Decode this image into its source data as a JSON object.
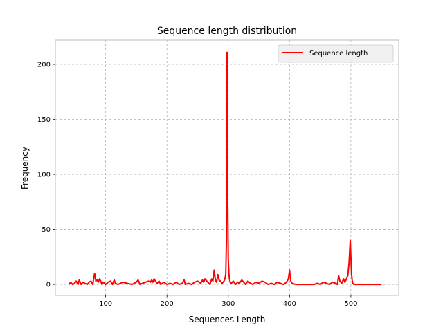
{
  "chart_data": {
    "type": "line",
    "title": "Sequence length distribution",
    "xlabel": "Sequences Length",
    "ylabel": "Frequency",
    "xlim": [
      18,
      578
    ],
    "ylim": [
      -10,
      222
    ],
    "xticks": [
      100,
      200,
      300,
      400,
      500
    ],
    "yticks": [
      0,
      50,
      100,
      150,
      200
    ],
    "grid": true,
    "legend_position": "top-right",
    "colors": {
      "series": "#ff0000",
      "grid": "#b0b0b0",
      "frame": "#bcbcbc"
    },
    "series": [
      {
        "name": "Sequence length",
        "x": [
          40,
          43,
          46,
          49,
          52,
          55,
          57,
          60,
          63,
          66,
          70,
          73,
          76,
          79,
          82,
          84,
          86,
          88,
          90,
          92,
          94,
          96,
          100,
          104,
          108,
          111,
          114,
          116,
          120,
          128,
          135,
          143,
          150,
          153,
          156,
          160,
          165,
          170,
          173,
          175,
          177,
          179,
          181,
          184,
          187,
          190,
          195,
          200,
          205,
          210,
          215,
          220,
          225,
          228,
          230,
          235,
          240,
          245,
          250,
          255,
          258,
          260,
          262,
          265,
          270,
          273,
          275,
          277,
          279,
          281,
          283,
          285,
          287,
          290,
          293,
          295,
          296,
          297,
          298,
          299,
          300,
          301,
          302,
          303,
          305,
          308,
          312,
          315,
          318,
          322,
          325,
          328,
          332,
          336,
          340,
          345,
          350,
          355,
          360,
          365,
          370,
          375,
          380,
          385,
          390,
          395,
          398,
          400,
          402,
          404,
          410,
          420,
          430,
          440,
          445,
          450,
          455,
          460,
          465,
          470,
          475,
          478,
          480,
          482,
          485,
          488,
          490,
          492,
          495,
          497,
          499,
          500,
          501,
          502,
          503,
          505,
          508,
          512,
          520,
          530,
          540,
          550
        ],
        "values": [
          0,
          2,
          0,
          1,
          3,
          0,
          4,
          0,
          2,
          1,
          0,
          2,
          3,
          0,
          10,
          3,
          4,
          2,
          5,
          3,
          0,
          2,
          0,
          2,
          3,
          0,
          4,
          1,
          0,
          2,
          1,
          0,
          2,
          4,
          0,
          1,
          2,
          3,
          2,
          4,
          2,
          5,
          3,
          1,
          3,
          0,
          2,
          0,
          1,
          0,
          2,
          0,
          1,
          4,
          0,
          1,
          0,
          2,
          3,
          1,
          4,
          2,
          5,
          3,
          0,
          5,
          3,
          13,
          4,
          2,
          9,
          4,
          3,
          1,
          3,
          6,
          10,
          40,
          211,
          80,
          22,
          10,
          5,
          2,
          1,
          3,
          0,
          2,
          1,
          4,
          2,
          0,
          3,
          1,
          0,
          2,
          1,
          3,
          2,
          0,
          1,
          0,
          2,
          1,
          0,
          2,
          5,
          13,
          3,
          1,
          0,
          0,
          0,
          0,
          1,
          0,
          2,
          1,
          0,
          2,
          1,
          0,
          8,
          3,
          1,
          5,
          2,
          4,
          8,
          20,
          40,
          25,
          10,
          4,
          1,
          0,
          0,
          0,
          0,
          0,
          0,
          0
        ]
      }
    ]
  }
}
